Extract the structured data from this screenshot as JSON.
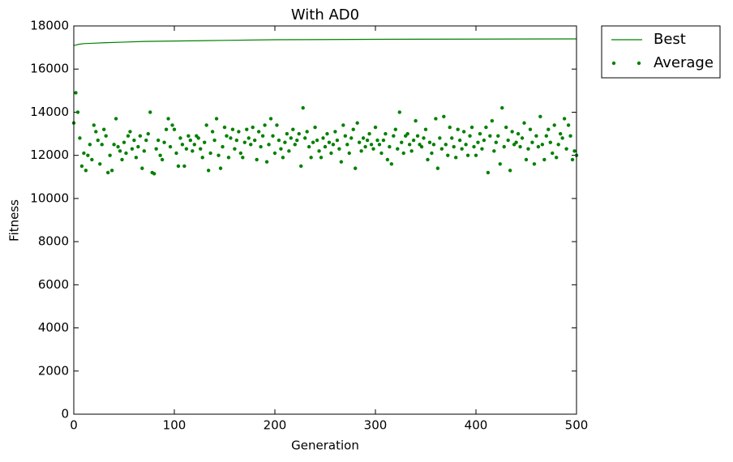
{
  "chart_data": {
    "type": "line",
    "title": "With AD0",
    "xlabel": "Generation",
    "ylabel": "Fitness",
    "xlim": [
      0,
      500
    ],
    "xticks": [
      0,
      100,
      200,
      300,
      400,
      500
    ],
    "ylim": [
      0,
      18000
    ],
    "yticks": [
      0,
      2000,
      4000,
      6000,
      8000,
      10000,
      12000,
      14000,
      16000,
      18000
    ],
    "legend": "outside upper right",
    "series": [
      {
        "name": "Best",
        "type": "line",
        "color": "#008000",
        "x": [
          0,
          1,
          5,
          10,
          20,
          30,
          50,
          70,
          100,
          150,
          200,
          300,
          400,
          500
        ],
        "values": [
          17100,
          17100,
          17150,
          17180,
          17200,
          17220,
          17250,
          17280,
          17300,
          17330,
          17360,
          17380,
          17390,
          17400
        ]
      },
      {
        "name": "Average",
        "type": "scatter",
        "color": "#008000",
        "x": [
          0,
          2,
          4,
          6,
          8,
          10,
          12,
          14,
          16,
          18,
          20,
          22,
          24,
          26,
          28,
          30,
          32,
          34,
          36,
          38,
          40,
          42,
          44,
          46,
          48,
          50,
          52,
          54,
          56,
          58,
          60,
          62,
          64,
          66,
          68,
          70,
          72,
          74,
          76,
          78,
          80,
          82,
          84,
          86,
          88,
          90,
          92,
          94,
          96,
          98,
          100,
          102,
          104,
          106,
          108,
          110,
          112,
          114,
          116,
          118,
          120,
          122,
          124,
          126,
          128,
          130,
          132,
          134,
          136,
          138,
          140,
          142,
          144,
          146,
          148,
          150,
          152,
          154,
          156,
          158,
          160,
          162,
          164,
          166,
          168,
          170,
          172,
          174,
          176,
          178,
          180,
          182,
          184,
          186,
          188,
          190,
          192,
          194,
          196,
          198,
          200,
          202,
          204,
          206,
          208,
          210,
          212,
          214,
          216,
          218,
          220,
          222,
          224,
          226,
          228,
          230,
          232,
          234,
          236,
          238,
          240,
          242,
          244,
          246,
          248,
          250,
          252,
          254,
          256,
          258,
          260,
          262,
          264,
          266,
          268,
          270,
          272,
          274,
          276,
          278,
          280,
          282,
          284,
          286,
          288,
          290,
          292,
          294,
          296,
          298,
          300,
          302,
          304,
          306,
          308,
          310,
          312,
          314,
          316,
          318,
          320,
          322,
          324,
          326,
          328,
          330,
          332,
          334,
          336,
          338,
          340,
          342,
          344,
          346,
          348,
          350,
          352,
          354,
          356,
          358,
          360,
          362,
          364,
          366,
          368,
          370,
          372,
          374,
          376,
          378,
          380,
          382,
          384,
          386,
          388,
          390,
          392,
          394,
          396,
          398,
          400,
          402,
          404,
          406,
          408,
          410,
          412,
          414,
          416,
          418,
          420,
          422,
          424,
          426,
          428,
          430,
          432,
          434,
          436,
          438,
          440,
          442,
          444,
          446,
          448,
          450,
          452,
          454,
          456,
          458,
          460,
          462,
          464,
          466,
          468,
          470,
          472,
          474,
          476,
          478,
          480,
          482,
          484,
          486,
          488,
          490,
          492,
          494,
          496,
          498,
          500
        ],
        "values": [
          13500,
          14900,
          14000,
          12800,
          11500,
          12100,
          11300,
          12000,
          12500,
          11800,
          13400,
          13100,
          12700,
          11600,
          12500,
          13200,
          12900,
          11200,
          12000,
          11300,
          12500,
          13700,
          12400,
          12200,
          11800,
          12600,
          12100,
          12900,
          13100,
          12300,
          12700,
          11900,
          12400,
          12900,
          11400,
          12200,
          12700,
          13000,
          14000,
          11200,
          11150,
          12300,
          12700,
          12000,
          11800,
          12600,
          13200,
          13700,
          12400,
          13400,
          13200,
          12100,
          11500,
          12800,
          12500,
          11500,
          12300,
          12900,
          12700,
          12200,
          12500,
          12900,
          12800,
          12300,
          11900,
          12600,
          13400,
          11300,
          12100,
          13100,
          12700,
          13700,
          12000,
          11400,
          12400,
          13300,
          12900,
          11900,
          12800,
          13200,
          12300,
          12700,
          13100,
          12100,
          11900,
          12600,
          13200,
          12800,
          12500,
          13300,
          12700,
          11800,
          13100,
          12400,
          12900,
          13400,
          11700,
          12500,
          13700,
          12900,
          12100,
          13400,
          12700,
          12300,
          11900,
          12600,
          13000,
          12200,
          12800,
          13200,
          12500,
          12700,
          13000,
          11500,
          14200,
          12800,
          13100,
          12400,
          11900,
          12600,
          13300,
          12700,
          12200,
          11900,
          12800,
          12400,
          13000,
          12600,
          12100,
          12500,
          13100,
          12700,
          12300,
          11700,
          13400,
          12900,
          12500,
          12100,
          12800,
          13200,
          11400,
          13500,
          12600,
          12200,
          12800,
          12400,
          12700,
          13000,
          12500,
          12300,
          13300,
          12700,
          12500,
          12100,
          12700,
          13000,
          11800,
          12400,
          11600,
          12900,
          13200,
          12300,
          14000,
          12600,
          12100,
          12900,
          13000,
          12500,
          12200,
          12700,
          13600,
          12900,
          12500,
          12400,
          12800,
          13200,
          11800,
          12600,
          12100,
          12500,
          13700,
          11400,
          12800,
          12300,
          13800,
          12500,
          12000,
          13300,
          12800,
          12400,
          11900,
          13200,
          12700,
          12300,
          13100,
          12500,
          12000,
          12900,
          13300,
          12400,
          12000,
          12600,
          13000,
          12300,
          12700,
          13300,
          11200,
          12900,
          13600,
          12200,
          12600,
          12900,
          11600,
          14200,
          12400,
          13300,
          12700,
          11300,
          13100,
          12500,
          12600,
          13000,
          12400,
          12800,
          13500,
          11800,
          12300,
          13200,
          12600,
          11600,
          12900,
          12400,
          13800,
          12500,
          11800,
          12900,
          13200,
          12600,
          12100,
          13400,
          11900,
          12500,
          13000,
          12800,
          13700,
          12300,
          13400,
          12900,
          11800,
          12200,
          12000
        ]
      }
    ]
  }
}
